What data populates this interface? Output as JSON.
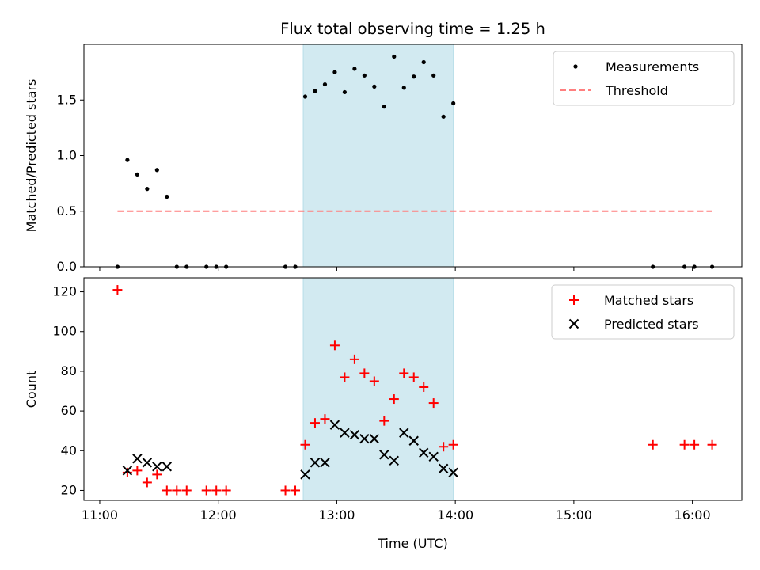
{
  "chart_data": [
    {
      "type": "scatter",
      "title": "Flux total observing time = 1.25 h",
      "ylabel": "Matched/Predicted stars",
      "xlabel": "",
      "ylim": [
        0,
        2.0
      ],
      "yticks": [
        "0.0",
        "0.5",
        "1.0",
        "1.5"
      ],
      "ytick_values": [
        0,
        0.5,
        1.0,
        1.5
      ],
      "grid": false,
      "legend": "top-right",
      "highlight_span": [
        "12:43",
        "13:59"
      ],
      "highlight_color": "#add8e6",
      "series": [
        {
          "name": "Measurements",
          "marker": "dot",
          "color": "#000000",
          "points": [
            [
              "11:09",
              0.0
            ],
            [
              "11:14",
              0.96
            ],
            [
              "11:19",
              0.83
            ],
            [
              "11:24",
              0.7
            ],
            [
              "11:29",
              0.87
            ],
            [
              "11:34",
              0.63
            ],
            [
              "11:39",
              0.0
            ],
            [
              "11:44",
              0.0
            ],
            [
              "11:54",
              0.0
            ],
            [
              "11:59",
              0.0
            ],
            [
              "12:04",
              0.0
            ],
            [
              "12:34",
              0.0
            ],
            [
              "12:39",
              0.0
            ],
            [
              "12:44",
              1.53
            ],
            [
              "12:49",
              1.58
            ],
            [
              "12:54",
              1.64
            ],
            [
              "12:59",
              1.75
            ],
            [
              "13:04",
              1.57
            ],
            [
              "13:09",
              1.78
            ],
            [
              "13:14",
              1.72
            ],
            [
              "13:19",
              1.62
            ],
            [
              "13:24",
              1.44
            ],
            [
              "13:29",
              1.89
            ],
            [
              "13:34",
              1.61
            ],
            [
              "13:39",
              1.71
            ],
            [
              "13:44",
              1.84
            ],
            [
              "13:49",
              1.72
            ],
            [
              "13:54",
              1.35
            ],
            [
              "13:59",
              1.47
            ],
            [
              "15:40",
              0.0
            ],
            [
              "15:56",
              0.0
            ],
            [
              "16:01",
              0.0
            ],
            [
              "16:10",
              0.0
            ]
          ]
        },
        {
          "name": "Threshold",
          "marker": "dashed-line",
          "color": "#ff7f7f",
          "points": [
            [
              "11:09",
              0.5
            ],
            [
              "16:10",
              0.5
            ]
          ]
        }
      ]
    },
    {
      "type": "scatter",
      "title": "",
      "ylabel": "Count",
      "xlabel": "Time (UTC)",
      "ylim": [
        15,
        127
      ],
      "yticks": [
        "20",
        "40",
        "60",
        "80",
        "100",
        "120"
      ],
      "ytick_values": [
        20,
        40,
        60,
        80,
        100,
        120
      ],
      "xticks": [
        "11:00",
        "12:00",
        "13:00",
        "14:00",
        "15:00",
        "16:00"
      ],
      "grid": false,
      "legend": "top-right",
      "highlight_span": [
        "12:43",
        "13:59"
      ],
      "highlight_color": "#add8e6",
      "series": [
        {
          "name": "Matched stars",
          "marker": "plus",
          "color": "#ff0000",
          "points": [
            [
              "11:09",
              121
            ],
            [
              "11:14",
              29
            ],
            [
              "11:19",
              30
            ],
            [
              "11:24",
              24
            ],
            [
              "11:29",
              28
            ],
            [
              "11:34",
              20
            ],
            [
              "11:39",
              20
            ],
            [
              "11:44",
              20
            ],
            [
              "11:54",
              20
            ],
            [
              "11:59",
              20
            ],
            [
              "12:04",
              20
            ],
            [
              "12:34",
              20
            ],
            [
              "12:39",
              20
            ],
            [
              "12:44",
              43
            ],
            [
              "12:49",
              54
            ],
            [
              "12:54",
              56
            ],
            [
              "12:59",
              93
            ],
            [
              "13:04",
              77
            ],
            [
              "13:09",
              86
            ],
            [
              "13:14",
              79
            ],
            [
              "13:19",
              75
            ],
            [
              "13:24",
              55
            ],
            [
              "13:29",
              66
            ],
            [
              "13:34",
              79
            ],
            [
              "13:39",
              77
            ],
            [
              "13:44",
              72
            ],
            [
              "13:49",
              64
            ],
            [
              "13:54",
              42
            ],
            [
              "13:59",
              43
            ],
            [
              "15:40",
              43
            ],
            [
              "15:56",
              43
            ],
            [
              "16:01",
              43
            ],
            [
              "16:10",
              43
            ]
          ]
        },
        {
          "name": "Predicted stars",
          "marker": "x",
          "color": "#000000",
          "points": [
            [
              "11:14",
              30
            ],
            [
              "11:19",
              36
            ],
            [
              "11:24",
              34
            ],
            [
              "11:29",
              32
            ],
            [
              "11:34",
              32
            ],
            [
              "12:44",
              28
            ],
            [
              "12:49",
              34
            ],
            [
              "12:54",
              34
            ],
            [
              "12:59",
              53
            ],
            [
              "13:04",
              49
            ],
            [
              "13:09",
              48
            ],
            [
              "13:14",
              46
            ],
            [
              "13:19",
              46
            ],
            [
              "13:24",
              38
            ],
            [
              "13:29",
              35
            ],
            [
              "13:34",
              49
            ],
            [
              "13:39",
              45
            ],
            [
              "13:44",
              39
            ],
            [
              "13:49",
              37
            ],
            [
              "13:54",
              31
            ],
            [
              "13:59",
              29
            ]
          ]
        }
      ]
    }
  ]
}
